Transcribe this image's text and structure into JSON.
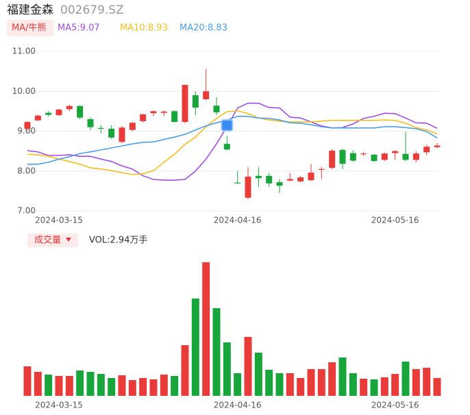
{
  "chart_data": [
    {
      "type": "candlestick",
      "title": "福建金森",
      "subtitle": "002679.SZ",
      "legend_label": "MA/牛熊",
      "up_color": "#ea3b3b",
      "down_color": "#17a53c",
      "grid": true,
      "categories": [
        null,
        null,
        null,
        "2024-03-15",
        null,
        null,
        null,
        null,
        null,
        null,
        null,
        null,
        null,
        null,
        null,
        null,
        null,
        null,
        null,
        null,
        "2024-04-16",
        null,
        null,
        null,
        null,
        null,
        null,
        null,
        null,
        null,
        null,
        null,
        null,
        null,
        null,
        "2024-05-16",
        null,
        null,
        null,
        null
      ],
      "open": [
        9.06,
        9.27,
        9.46,
        9.4,
        9.55,
        9.63,
        9.3,
        9.08,
        9.06,
        8.73,
        9.03,
        9.25,
        9.45,
        9.46,
        9.5,
        9.23,
        9.9,
        9.8,
        9.64,
        8.68,
        7.71,
        7.33,
        7.88,
        7.88,
        7.72,
        7.76,
        7.74,
        7.77,
        8.03,
        8.08,
        8.53,
        8.45,
        8.42,
        8.41,
        8.28,
        8.45,
        8.43,
        8.28,
        8.47,
        8.6
      ],
      "high": [
        9.25,
        9.41,
        9.5,
        9.56,
        9.66,
        9.65,
        9.35,
        9.15,
        9.15,
        9.13,
        9.23,
        9.44,
        9.52,
        9.52,
        9.53,
        10.16,
        10.0,
        10.56,
        9.85,
        8.88,
        8.0,
        8.1,
        8.1,
        7.95,
        7.8,
        7.95,
        7.88,
        8.18,
        8.1,
        8.55,
        8.56,
        8.52,
        8.48,
        8.43,
        8.46,
        8.52,
        8.98,
        8.5,
        8.66,
        8.7
      ],
      "low": [
        9.0,
        9.25,
        9.37,
        9.38,
        9.5,
        9.3,
        9.03,
        8.95,
        8.8,
        8.7,
        9.0,
        9.22,
        9.38,
        9.38,
        9.22,
        9.2,
        9.4,
        9.78,
        9.4,
        8.52,
        7.68,
        7.3,
        7.6,
        7.6,
        7.45,
        7.74,
        7.72,
        7.75,
        7.8,
        8.05,
        8.05,
        8.23,
        8.38,
        8.23,
        8.25,
        8.28,
        8.25,
        8.22,
        8.4,
        8.57
      ],
      "close": [
        9.23,
        9.39,
        9.41,
        9.54,
        9.63,
        9.34,
        9.1,
        9.06,
        8.84,
        9.09,
        9.21,
        9.42,
        9.5,
        9.49,
        9.23,
        10.16,
        9.59,
        10.0,
        9.47,
        8.54,
        7.69,
        7.86,
        7.82,
        7.69,
        7.63,
        7.8,
        7.84,
        7.96,
        8.05,
        8.51,
        8.18,
        8.26,
        8.44,
        8.25,
        8.44,
        8.5,
        8.28,
        8.44,
        8.61,
        8.64
      ],
      "series": [
        {
          "name": "MA5:9.07",
          "color": "#a24ce6",
          "values": [
            8.51,
            8.48,
            8.39,
            8.39,
            8.41,
            8.37,
            8.37,
            8.3,
            8.24,
            8.13,
            8.05,
            7.88,
            7.79,
            7.77,
            7.77,
            7.79,
            8.0,
            8.3,
            8.68,
            9.11,
            9.58,
            9.7,
            9.7,
            9.59,
            9.58,
            9.35,
            9.33,
            9.23,
            9.13,
            9.08,
            9.09,
            9.18,
            9.32,
            9.37,
            9.45,
            9.44,
            9.33,
            9.21,
            9.2,
            9.07
          ]
        },
        {
          "name": "MA10:8.93",
          "color": "#f5be1e",
          "values": [
            8.42,
            8.41,
            8.37,
            8.3,
            8.24,
            8.17,
            8.08,
            8.05,
            8.01,
            7.96,
            7.91,
            7.93,
            8.01,
            8.22,
            8.42,
            8.67,
            8.85,
            9.11,
            9.32,
            9.49,
            9.51,
            9.44,
            9.33,
            9.28,
            9.25,
            9.23,
            9.23,
            9.23,
            9.25,
            9.27,
            9.27,
            9.27,
            9.27,
            9.27,
            9.28,
            9.27,
            9.2,
            9.09,
            9.03,
            8.93
          ]
        },
        {
          "name": "MA20:8.83",
          "color": "#4d9de8",
          "values": [
            8.17,
            8.17,
            8.22,
            8.3,
            8.36,
            8.44,
            8.48,
            8.53,
            8.58,
            8.63,
            8.68,
            8.72,
            8.73,
            8.79,
            8.85,
            8.92,
            9.03,
            9.13,
            9.21,
            9.28,
            9.37,
            9.37,
            9.33,
            9.32,
            9.28,
            9.21,
            9.2,
            9.16,
            9.11,
            9.08,
            9.08,
            9.08,
            9.08,
            9.08,
            9.11,
            9.11,
            9.09,
            9.06,
            8.99,
            8.83
          ]
        }
      ],
      "ylim": [
        7,
        11
      ],
      "yticks": [
        {
          "value": 11,
          "label": "11.00"
        },
        {
          "value": 10,
          "label": "10.00"
        },
        {
          "value": 9,
          "label": "9.00"
        },
        {
          "value": 8,
          "label": "8.00"
        },
        {
          "value": 7,
          "label": "7.00"
        }
      ]
    },
    {
      "type": "bar",
      "title": "成交量",
      "annotation": "VOL:2.94万手",
      "categories": [
        null,
        null,
        null,
        "2024-03-15",
        null,
        null,
        null,
        null,
        null,
        null,
        null,
        null,
        null,
        null,
        null,
        null,
        null,
        null,
        null,
        null,
        "2024-04-16",
        null,
        null,
        null,
        null,
        null,
        null,
        null,
        null,
        null,
        null,
        null,
        null,
        null,
        null,
        "2024-05-16",
        null,
        null,
        null,
        null
      ],
      "values": [
        4.86,
        3.96,
        3.5,
        3.28,
        3.28,
        4.18,
        3.96,
        3.62,
        2.94,
        3.39,
        2.6,
        2.94,
        2.71,
        3.5,
        3.28,
        8.36,
        16.05,
        22.04,
        14.46,
        8.81,
        3.73,
        9.72,
        7.12,
        4.29,
        3.73,
        3.73,
        2.94,
        4.41,
        4.41,
        5.54,
        6.33,
        3.73,
        2.83,
        2.71,
        3.05,
        3.62,
        5.65,
        4.41,
        4.63,
        2.94
      ],
      "ylim": [
        0,
        23.5
      ]
    }
  ]
}
